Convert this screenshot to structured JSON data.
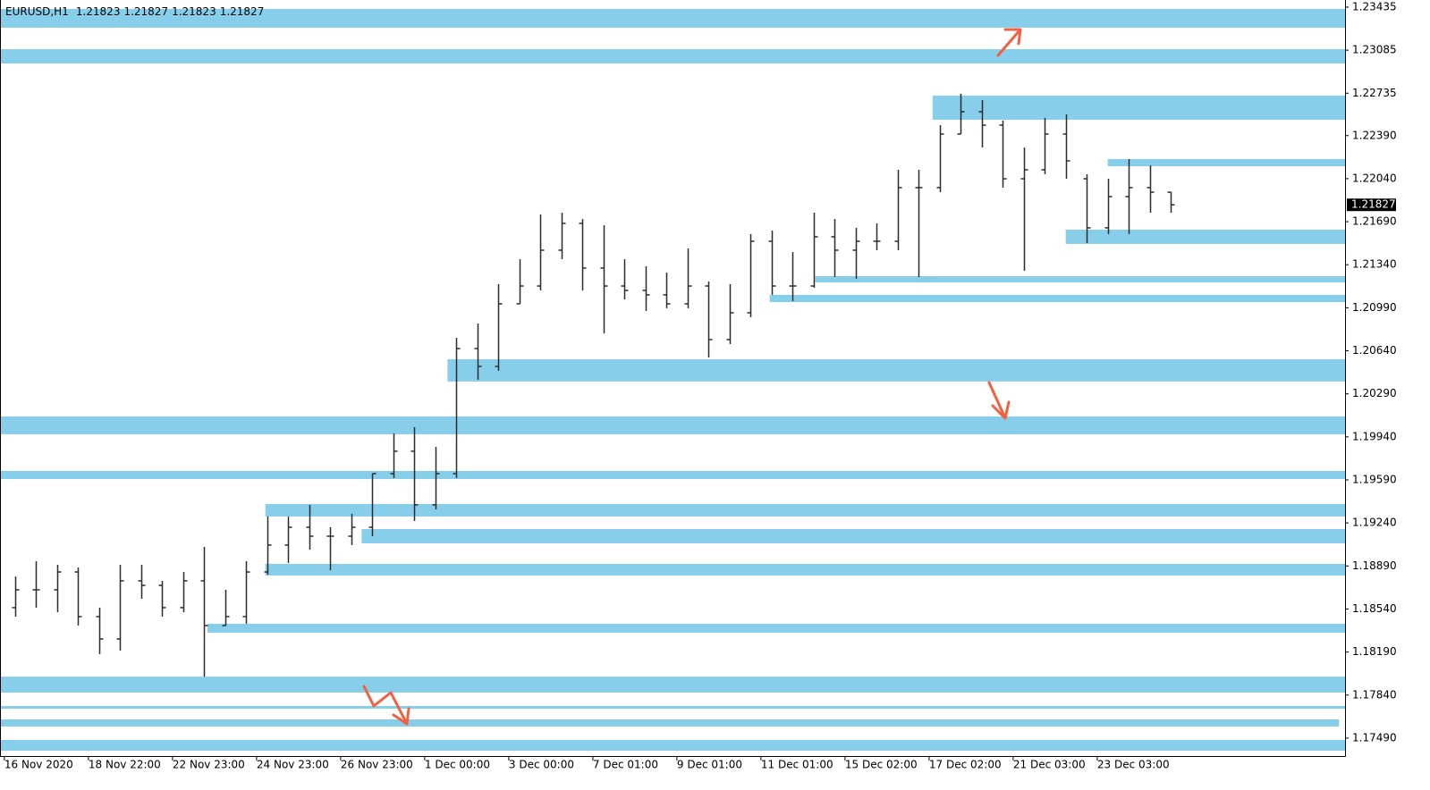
{
  "chart_data": {
    "type": "ohlc",
    "title": "EURUSD,H1",
    "header_values": [
      1.21823,
      1.21827,
      1.21823,
      1.21827
    ],
    "current_price": 1.21827,
    "color": "#2b2b2b",
    "zone_color": "#87ceeb",
    "xlim": [
      -2.5,
      765.5
    ],
    "ylim": [
      1.17344,
      1.23493
    ],
    "xticks": [
      {
        "value": 0,
        "label": "16 Nov 2020"
      },
      {
        "value": 48,
        "label": "18 Nov 22:00"
      },
      {
        "value": 96,
        "label": "22 Nov 23:00"
      },
      {
        "value": 144,
        "label": "24 Nov 23:00"
      },
      {
        "value": 192,
        "label": "26 Nov 23:00"
      },
      {
        "value": 240,
        "label": "1 Dec 00:00"
      },
      {
        "value": 288,
        "label": "3 Dec 00:00"
      },
      {
        "value": 336,
        "label": "7 Dec 01:00"
      },
      {
        "value": 384,
        "label": "9 Dec 01:00"
      },
      {
        "value": 432,
        "label": "11 Dec 01:00"
      },
      {
        "value": 480,
        "label": "15 Dec 02:00"
      },
      {
        "value": 528,
        "label": "17 Dec 02:00"
      },
      {
        "value": 576,
        "label": "21 Dec 03:00"
      },
      {
        "value": 624,
        "label": "23 Dec 03:00"
      }
    ],
    "yticks": [
      1.23435,
      1.23085,
      1.22735,
      {
        "value": 1.2239,
        "label": "1.22390"
      },
      {
        "value": 1.2204,
        "label": "1.22040"
      },
      {
        "value": 1.2169,
        "label": "1.21690"
      },
      {
        "value": 1.2134,
        "label": "1.21340"
      },
      {
        "value": 1.2099,
        "label": "1.20990"
      },
      {
        "value": 1.2064,
        "label": "1.20640"
      },
      {
        "value": 1.2029,
        "label": "1.20290"
      },
      {
        "value": 1.1994,
        "label": "1.19940"
      },
      {
        "value": 1.1959,
        "label": "1.19590"
      },
      {
        "value": 1.1924,
        "label": "1.19240"
      },
      {
        "value": 1.1889,
        "label": "1.18890"
      },
      {
        "value": 1.1854,
        "label": "1.18540"
      },
      {
        "value": 1.1819,
        "label": "1.18190"
      },
      {
        "value": 1.1784,
        "label": "1.17840"
      },
      {
        "value": 1.1749,
        "label": "1.17490"
      }
    ],
    "x": [
      6,
      18,
      30,
      42,
      54,
      66,
      78,
      90,
      102,
      114,
      126,
      138,
      150,
      162,
      174,
      186,
      198,
      210,
      222,
      234,
      246,
      258,
      270,
      282,
      294,
      306,
      318,
      330,
      342,
      354,
      366,
      378,
      390,
      402,
      414,
      426,
      438,
      450,
      462,
      474,
      486,
      498,
      510,
      522,
      534,
      546,
      558,
      570,
      582,
      594,
      606,
      618,
      630,
      642,
      654,
      666
    ],
    "open": [
      1.18551,
      1.18696,
      1.18696,
      1.18841,
      1.18478,
      1.18296,
      1.18769,
      1.18732,
      1.18551,
      1.18769,
      1.18405,
      1.18478,
      1.18841,
      1.1906,
      1.19205,
      1.19132,
      1.19132,
      1.19205,
      1.19641,
      1.19823,
      1.19387,
      1.19641,
      1.20658,
      1.20513,
      1.21022,
      1.21167,
      1.21458,
      1.21676,
      1.21313,
      1.21167,
      1.21131,
      1.21095,
      1.21022,
      1.21167,
      1.20731,
      1.20949,
      1.21531,
      1.21167,
      1.21167,
      1.21567,
      1.21458,
      1.21531,
      1.21531,
      1.21967,
      1.21967,
      1.22403,
      1.22584,
      1.22475,
      1.22039,
      1.22112,
      1.22403,
      1.22039,
      1.2164,
      1.21894,
      1.21967,
      1.2193
    ],
    "high": [
      1.18805,
      1.18929,
      1.18899,
      1.18878,
      1.18551,
      1.18899,
      1.18899,
      1.18769,
      1.18841,
      1.19045,
      1.18696,
      1.18929,
      1.19292,
      1.19292,
      1.19387,
      1.19205,
      1.19314,
      1.19641,
      1.19968,
      1.20019,
      1.19859,
      1.20746,
      1.20862,
      1.21182,
      1.21385,
      1.21749,
      1.21763,
      1.21712,
      1.21661,
      1.21385,
      1.21327,
      1.21276,
      1.21472,
      1.21204,
      1.21182,
      1.21589,
      1.21618,
      1.21443,
      1.21763,
      1.21712,
      1.2164,
      1.21676,
      1.22112,
      1.22112,
      1.22475,
      1.2273,
      1.22679,
      1.22512,
      1.22294,
      1.22534,
      1.22563,
      1.22076,
      1.22039,
      1.22199,
      1.22148,
      1.2193
    ],
    "low": [
      1.18478,
      1.18551,
      1.18514,
      1.18405,
      1.18173,
      1.18202,
      1.18623,
      1.18478,
      1.18514,
      1.1799,
      1.18405,
      1.1842,
      1.1882,
      1.18914,
      1.19023,
      1.18855,
      1.1906,
      1.19132,
      1.19605,
      1.19256,
      1.1935,
      1.19605,
      1.20404,
      1.20477,
      1.21022,
      1.21131,
      1.21385,
      1.21131,
      1.20782,
      1.21058,
      1.20964,
      1.20986,
      1.20986,
      1.20586,
      1.20695,
      1.20913,
      1.21095,
      1.21044,
      1.21153,
      1.2124,
      1.21225,
      1.21458,
      1.21458,
      1.2124,
      1.2193,
      1.22403,
      1.22294,
      1.21967,
      1.21291,
      1.22076,
      1.22039,
      1.21516,
      1.21589,
      1.21589,
      1.21763,
      1.21763
    ],
    "close": [
      1.18696,
      1.18696,
      1.18841,
      1.18478,
      1.18296,
      1.18769,
      1.18732,
      1.18551,
      1.18769,
      1.18405,
      1.18478,
      1.18841,
      1.1906,
      1.19205,
      1.19132,
      1.19132,
      1.19205,
      1.19641,
      1.19823,
      1.19387,
      1.19641,
      1.20658,
      1.20513,
      1.21022,
      1.21167,
      1.21458,
      1.21676,
      1.21313,
      1.21167,
      1.21131,
      1.21095,
      1.21022,
      1.21167,
      1.20731,
      1.20949,
      1.21531,
      1.21167,
      1.21167,
      1.21567,
      1.21458,
      1.21531,
      1.21531,
      1.21967,
      1.21967,
      1.22403,
      1.22584,
      1.22475,
      1.22039,
      1.22112,
      1.22403,
      1.22185,
      1.2164,
      1.21894,
      1.21967,
      1.2193,
      1.21827
    ],
    "zones": [
      {
        "top": 1.2342,
        "bottom": 1.23268,
        "x_start": -2.5,
        "x_end": 765.5
      },
      {
        "top": 1.23093,
        "bottom": 1.22977,
        "x_start": -2.5,
        "x_end": 765.5
      },
      {
        "top": 1.22715,
        "bottom": 1.22519,
        "x_start": 530,
        "x_end": 765.5
      },
      {
        "top": 1.22199,
        "bottom": 1.22141,
        "x_start": 630,
        "x_end": 765.5
      },
      {
        "top": 1.21625,
        "bottom": 1.21509,
        "x_start": 606,
        "x_end": 765.5
      },
      {
        "top": 1.21247,
        "bottom": 1.21196,
        "x_start": 463,
        "x_end": 765.5
      },
      {
        "top": 1.21095,
        "bottom": 1.21036,
        "x_start": 437,
        "x_end": 765.5
      },
      {
        "top": 1.20571,
        "bottom": 1.2039,
        "x_start": 253,
        "x_end": 765.5
      },
      {
        "top": 1.20106,
        "bottom": 1.19961,
        "x_start": -2.5,
        "x_end": 765.5
      },
      {
        "top": 1.19663,
        "bottom": 1.19597,
        "x_start": -2.5,
        "x_end": 765.5
      },
      {
        "top": 1.19394,
        "bottom": 1.19292,
        "x_start": 149,
        "x_end": 765.5
      },
      {
        "top": 1.1919,
        "bottom": 1.19074,
        "x_start": 204,
        "x_end": 765.5
      },
      {
        "top": 1.18907,
        "bottom": 1.18812,
        "x_start": 149,
        "x_end": 765.5
      },
      {
        "top": 1.1842,
        "bottom": 1.18347,
        "x_start": 116,
        "x_end": 765.5
      },
      {
        "top": 1.1799,
        "bottom": 1.1786,
        "x_start": -2.5,
        "x_end": 765.5
      },
      {
        "top": 1.17751,
        "bottom": 1.17729,
        "x_start": -2.5,
        "x_end": 765.5
      },
      {
        "top": 1.17642,
        "bottom": 1.17584,
        "x_start": -2.5,
        "x_end": 762
      },
      {
        "top": 1.17475,
        "bottom": 1.17388,
        "x_start": -2.5,
        "x_end": 765.5
      }
    ]
  }
}
